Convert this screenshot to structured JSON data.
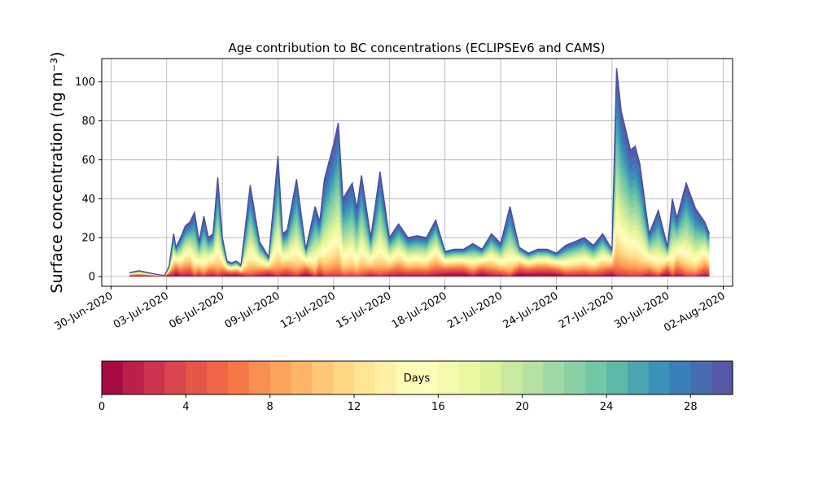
{
  "chart_data": {
    "type": "area",
    "title": "Age contribution to BC concentrations (ECLIPSEv6 and CAMS)",
    "ylabel": "Surface concentration (ng m⁻³)",
    "xlabel": "",
    "ylim": [
      -5,
      112
    ],
    "yticks": [
      0,
      20,
      40,
      60,
      80,
      100
    ],
    "xlim": [
      "2020-06-29T12:00",
      "2020-08-02T12:00"
    ],
    "xticks": [
      "2020-06-30",
      "2020-07-03",
      "2020-07-06",
      "2020-07-09",
      "2020-07-12",
      "2020-07-15",
      "2020-07-18",
      "2020-07-21",
      "2020-07-24",
      "2020-07-27",
      "2020-07-30",
      "2020-08-02"
    ],
    "xtick_labels": [
      "30-Jun-2020",
      "03-Jul-2020",
      "06-Jul-2020",
      "09-Jul-2020",
      "12-Jul-2020",
      "15-Jul-2020",
      "18-Jul-2020",
      "21-Jul-2020",
      "24-Jul-2020",
      "27-Jul-2020",
      "30-Jul-2020",
      "02-Aug-2020"
    ],
    "grid": true,
    "colormap": "Spectral",
    "total_series": {
      "name": "total",
      "x": [
        "2020-07-01T00:00",
        "2020-07-01T12:00",
        "2020-07-02T00:00",
        "2020-07-02T12:00",
        "2020-07-02T21:00",
        "2020-07-03T03:00",
        "2020-07-03T09:00",
        "2020-07-03T12:00",
        "2020-07-03T18:00",
        "2020-07-04T00:00",
        "2020-07-04T06:00",
        "2020-07-04T12:00",
        "2020-07-04T18:00",
        "2020-07-05T00:00",
        "2020-07-05T06:00",
        "2020-07-05T12:00",
        "2020-07-05T18:00",
        "2020-07-06T00:00",
        "2020-07-06T06:00",
        "2020-07-06T12:00",
        "2020-07-06T18:00",
        "2020-07-07T00:00",
        "2020-07-07T12:00",
        "2020-07-08T00:00",
        "2020-07-08T12:00",
        "2020-07-09T00:00",
        "2020-07-09T06:00",
        "2020-07-09T12:00",
        "2020-07-10T00:00",
        "2020-07-10T12:00",
        "2020-07-11T00:00",
        "2020-07-11T06:00",
        "2020-07-11T12:00",
        "2020-07-12T00:00",
        "2020-07-12T06:00",
        "2020-07-12T12:00",
        "2020-07-13T00:00",
        "2020-07-13T06:00",
        "2020-07-13T12:00",
        "2020-07-14T00:00",
        "2020-07-14T12:00",
        "2020-07-15T00:00",
        "2020-07-15T12:00",
        "2020-07-16T00:00",
        "2020-07-16T12:00",
        "2020-07-17T00:00",
        "2020-07-17T12:00",
        "2020-07-18T00:00",
        "2020-07-18T12:00",
        "2020-07-19T00:00",
        "2020-07-19T12:00",
        "2020-07-20T00:00",
        "2020-07-20T12:00",
        "2020-07-21T00:00",
        "2020-07-21T12:00",
        "2020-07-22T00:00",
        "2020-07-22T12:00",
        "2020-07-23T00:00",
        "2020-07-23T12:00",
        "2020-07-24T00:00",
        "2020-07-24T12:00",
        "2020-07-25T00:00",
        "2020-07-25T12:00",
        "2020-07-26T00:00",
        "2020-07-26T12:00",
        "2020-07-27T00:00",
        "2020-07-27T06:00",
        "2020-07-27T12:00",
        "2020-07-28T00:00",
        "2020-07-28T06:00",
        "2020-07-28T12:00",
        "2020-07-29T00:00",
        "2020-07-29T12:00",
        "2020-07-30T00:00",
        "2020-07-30T06:00",
        "2020-07-30T12:00",
        "2020-07-31T00:00",
        "2020-07-31T12:00",
        "2020-08-01T00:00",
        "2020-08-01T06:00"
      ],
      "values": [
        2,
        3,
        2,
        1,
        0.5,
        5,
        22,
        15,
        20,
        26,
        28,
        33,
        18,
        31,
        20,
        22,
        51,
        20,
        8,
        7,
        8,
        6,
        47,
        18,
        10,
        62,
        22,
        24,
        50,
        14,
        36,
        28,
        50,
        68,
        79,
        40,
        48,
        35,
        52,
        20,
        54,
        20,
        27,
        20,
        21,
        20,
        29,
        13,
        14,
        14,
        17,
        14,
        22,
        17,
        36,
        15,
        12,
        14,
        14,
        12,
        16,
        18,
        20,
        16,
        22,
        14,
        107,
        85,
        65,
        67,
        58,
        22,
        34,
        15,
        40,
        30,
        48,
        35,
        28,
        22
      ]
    },
    "age_bins_days": 30,
    "colorbar": {
      "label": "Days",
      "ticks": [
        0,
        4,
        8,
        12,
        16,
        20,
        24,
        28
      ],
      "range": [
        0,
        30
      ]
    }
  }
}
